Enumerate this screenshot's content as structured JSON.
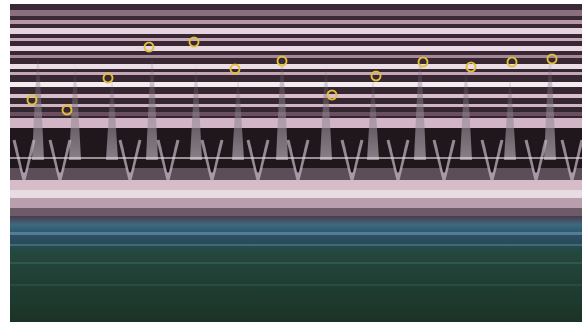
{
  "image": {
    "description_kind": "m-mode-ultrasound-strip",
    "colors": {
      "frame_background": "#ffffff",
      "band_dark_top": "#2a1e26",
      "band_pink": "#cbb0c0",
      "band_light": "#e8dde4",
      "band_pale": "#f2ebf0",
      "tissue_dark": "#1a1418",
      "tissue_mid": "#5a4a55",
      "lower_blue": "#3d6a80",
      "lower_green": "#1e3a2c",
      "marker_ring": "#e3bf3a"
    }
  },
  "markers": {
    "count": 14,
    "peaks": [
      {
        "id": 1
      },
      {
        "id": 2
      },
      {
        "id": 3
      },
      {
        "id": 4
      },
      {
        "id": 5
      },
      {
        "id": 6
      },
      {
        "id": 7
      },
      {
        "id": 8
      },
      {
        "id": 9
      },
      {
        "id": 10
      },
      {
        "id": 11
      },
      {
        "id": 12
      },
      {
        "id": 13
      },
      {
        "id": 14
      }
    ]
  }
}
